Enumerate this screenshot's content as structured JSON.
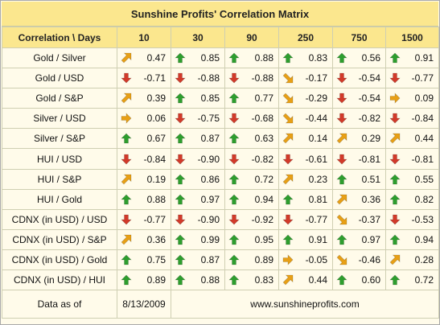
{
  "title": "Sunshine Profits' Correlation Matrix",
  "corner_label": "Correlation \\ Days",
  "columns": [
    "10",
    "30",
    "90",
    "250",
    "750",
    "1500"
  ],
  "colors": {
    "up": "#2e9e2e",
    "down": "#d23a2a",
    "up_right": "#e8a016",
    "down_right": "#e8a016",
    "right": "#e8a016",
    "header_bg": "#fbe78e",
    "body_bg": "#fffbea"
  },
  "rows": [
    {
      "label": "Gold / Silver",
      "cells": [
        {
          "value": "0.47",
          "dir": "up_right"
        },
        {
          "value": "0.85",
          "dir": "up"
        },
        {
          "value": "0.88",
          "dir": "up"
        },
        {
          "value": "0.83",
          "dir": "up"
        },
        {
          "value": "0.56",
          "dir": "up"
        },
        {
          "value": "0.91",
          "dir": "up"
        }
      ]
    },
    {
      "label": "Gold / USD",
      "cells": [
        {
          "value": "-0.71",
          "dir": "down"
        },
        {
          "value": "-0.88",
          "dir": "down"
        },
        {
          "value": "-0.88",
          "dir": "down"
        },
        {
          "value": "-0.17",
          "dir": "down_right"
        },
        {
          "value": "-0.54",
          "dir": "down"
        },
        {
          "value": "-0.77",
          "dir": "down"
        }
      ]
    },
    {
      "label": "Gold / S&P",
      "cells": [
        {
          "value": "0.39",
          "dir": "up_right"
        },
        {
          "value": "0.85",
          "dir": "up"
        },
        {
          "value": "0.77",
          "dir": "up"
        },
        {
          "value": "-0.29",
          "dir": "down_right"
        },
        {
          "value": "-0.54",
          "dir": "down"
        },
        {
          "value": "0.09",
          "dir": "right"
        }
      ]
    },
    {
      "label": "Silver / USD",
      "cells": [
        {
          "value": "0.06",
          "dir": "right"
        },
        {
          "value": "-0.75",
          "dir": "down"
        },
        {
          "value": "-0.68",
          "dir": "down"
        },
        {
          "value": "-0.44",
          "dir": "down_right"
        },
        {
          "value": "-0.82",
          "dir": "down"
        },
        {
          "value": "-0.84",
          "dir": "down"
        }
      ]
    },
    {
      "label": "Silver / S&P",
      "cells": [
        {
          "value": "0.67",
          "dir": "up"
        },
        {
          "value": "0.87",
          "dir": "up"
        },
        {
          "value": "0.63",
          "dir": "up"
        },
        {
          "value": "0.14",
          "dir": "up_right"
        },
        {
          "value": "0.29",
          "dir": "up_right"
        },
        {
          "value": "0.44",
          "dir": "up_right"
        }
      ]
    },
    {
      "label": "HUI / USD",
      "cells": [
        {
          "value": "-0.84",
          "dir": "down"
        },
        {
          "value": "-0.90",
          "dir": "down"
        },
        {
          "value": "-0.82",
          "dir": "down"
        },
        {
          "value": "-0.61",
          "dir": "down"
        },
        {
          "value": "-0.81",
          "dir": "down"
        },
        {
          "value": "-0.81",
          "dir": "down"
        }
      ]
    },
    {
      "label": "HUI / S&P",
      "cells": [
        {
          "value": "0.19",
          "dir": "up_right"
        },
        {
          "value": "0.86",
          "dir": "up"
        },
        {
          "value": "0.72",
          "dir": "up"
        },
        {
          "value": "0.23",
          "dir": "up_right"
        },
        {
          "value": "0.51",
          "dir": "up"
        },
        {
          "value": "0.55",
          "dir": "up"
        }
      ]
    },
    {
      "label": "HUI / Gold",
      "cells": [
        {
          "value": "0.88",
          "dir": "up"
        },
        {
          "value": "0.97",
          "dir": "up"
        },
        {
          "value": "0.94",
          "dir": "up"
        },
        {
          "value": "0.81",
          "dir": "up"
        },
        {
          "value": "0.36",
          "dir": "up_right"
        },
        {
          "value": "0.82",
          "dir": "up"
        }
      ]
    },
    {
      "label": "CDNX (in USD) / USD",
      "cells": [
        {
          "value": "-0.77",
          "dir": "down"
        },
        {
          "value": "-0.90",
          "dir": "down"
        },
        {
          "value": "-0.92",
          "dir": "down"
        },
        {
          "value": "-0.77",
          "dir": "down"
        },
        {
          "value": "-0.37",
          "dir": "down_right"
        },
        {
          "value": "-0.53",
          "dir": "down"
        }
      ]
    },
    {
      "label": "CDNX (in USD) / S&P",
      "cells": [
        {
          "value": "0.36",
          "dir": "up_right"
        },
        {
          "value": "0.99",
          "dir": "up"
        },
        {
          "value": "0.95",
          "dir": "up"
        },
        {
          "value": "0.91",
          "dir": "up"
        },
        {
          "value": "0.97",
          "dir": "up"
        },
        {
          "value": "0.94",
          "dir": "up"
        }
      ]
    },
    {
      "label": "CDNX (in USD) / Gold",
      "cells": [
        {
          "value": "0.75",
          "dir": "up"
        },
        {
          "value": "0.87",
          "dir": "up"
        },
        {
          "value": "0.89",
          "dir": "up"
        },
        {
          "value": "-0.05",
          "dir": "right"
        },
        {
          "value": "-0.46",
          "dir": "down_right"
        },
        {
          "value": "0.28",
          "dir": "up_right"
        }
      ]
    },
    {
      "label": "CDNX (in USD) / HUI",
      "cells": [
        {
          "value": "0.89",
          "dir": "up"
        },
        {
          "value": "0.88",
          "dir": "up"
        },
        {
          "value": "0.83",
          "dir": "up"
        },
        {
          "value": "0.44",
          "dir": "up_right"
        },
        {
          "value": "0.60",
          "dir": "up"
        },
        {
          "value": "0.72",
          "dir": "up"
        }
      ]
    }
  ],
  "footer": {
    "data_as_of_label": "Data as of",
    "date": "8/13/2009",
    "website": "www.sunshineprofits.com"
  }
}
